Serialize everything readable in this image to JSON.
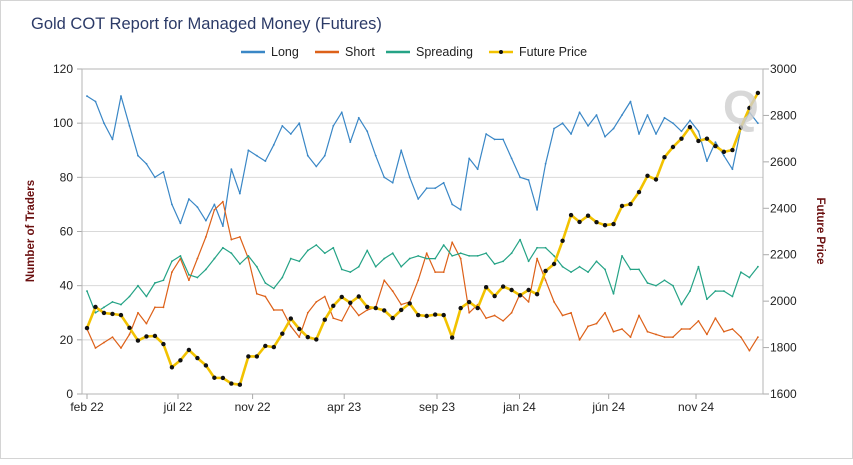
{
  "chart_data": {
    "type": "line",
    "title": "Gold COT Report for Managed Money (Futures)",
    "ylabel_left": "Number of Traders",
    "ylabel_right": "Future Price",
    "ylim_left": [
      0,
      120
    ],
    "ylim_right": [
      1600,
      3000
    ],
    "yticks_left": [
      "0",
      "20",
      "40",
      "60",
      "80",
      "100",
      "120"
    ],
    "yticks_right": [
      "1600",
      "1800",
      "2000",
      "2200",
      "2400",
      "2600",
      "2800",
      "3000"
    ],
    "x_ticks": [
      {
        "label": "feb 22",
        "date": "2022-02-01"
      },
      {
        "label": "júl 22",
        "date": "2022-07-01"
      },
      {
        "label": "nov 22",
        "date": "2022-11-01"
      },
      {
        "label": "apr 23",
        "date": "2023-04-01"
      },
      {
        "label": "sep 23",
        "date": "2023-09-01"
      },
      {
        "label": "jan 24",
        "date": "2024-01-15"
      },
      {
        "label": "jún 24",
        "date": "2024-06-10"
      },
      {
        "label": "nov 24",
        "date": "2024-11-01"
      }
    ],
    "grid": true,
    "legend_position": "top-center",
    "dates": [
      "2022-02-01",
      "2022-02-15",
      "2022-03-01",
      "2022-03-15",
      "2022-03-29",
      "2022-04-12",
      "2022-04-26",
      "2022-05-10",
      "2022-05-24",
      "2022-06-07",
      "2022-06-21",
      "2022-07-05",
      "2022-07-19",
      "2022-08-02",
      "2022-08-16",
      "2022-08-30",
      "2022-09-13",
      "2022-09-27",
      "2022-10-11",
      "2022-10-25",
      "2022-11-08",
      "2022-11-22",
      "2022-12-06",
      "2022-12-20",
      "2023-01-03",
      "2023-01-17",
      "2023-01-31",
      "2023-02-14",
      "2023-02-28",
      "2023-03-14",
      "2023-03-28",
      "2023-04-11",
      "2023-04-25",
      "2023-05-09",
      "2023-05-23",
      "2023-06-06",
      "2023-06-20",
      "2023-07-04",
      "2023-07-18",
      "2023-08-01",
      "2023-08-15",
      "2023-08-29",
      "2023-09-12",
      "2023-09-26",
      "2023-10-10",
      "2023-10-24",
      "2023-11-07",
      "2023-11-21",
      "2023-12-05",
      "2023-12-19",
      "2024-01-02",
      "2024-01-16",
      "2024-01-30",
      "2024-02-13",
      "2024-02-27",
      "2024-03-12",
      "2024-03-26",
      "2024-04-09",
      "2024-04-23",
      "2024-05-07",
      "2024-05-21",
      "2024-06-04",
      "2024-06-18",
      "2024-07-02",
      "2024-07-16",
      "2024-07-30",
      "2024-08-13",
      "2024-08-27",
      "2024-09-10",
      "2024-09-24",
      "2024-10-08",
      "2024-10-22",
      "2024-11-05",
      "2024-11-19",
      "2024-12-03",
      "2024-12-17",
      "2024-12-31",
      "2025-01-14",
      "2025-01-28",
      "2025-02-11"
    ],
    "series": [
      {
        "name": "Long",
        "axis": "left",
        "color": "#3a87c6",
        "values": [
          110,
          108,
          100,
          94,
          110,
          99,
          88,
          85,
          80,
          82,
          70,
          63,
          72,
          69,
          64,
          70,
          62,
          83,
          74,
          90,
          88,
          86,
          92,
          99,
          96,
          100,
          88,
          84,
          88,
          99,
          104,
          93,
          102,
          97,
          88,
          80,
          78,
          90,
          80,
          72,
          76,
          76,
          78,
          70,
          68,
          87,
          83,
          96,
          94,
          94,
          87,
          80,
          79,
          68,
          85,
          98,
          100,
          96,
          104,
          99,
          103,
          95,
          98,
          103,
          108,
          96,
          103,
          96,
          102,
          100,
          97,
          101,
          97,
          86,
          93,
          88,
          83,
          98,
          104,
          100
        ]
      },
      {
        "name": "Short",
        "axis": "left",
        "color": "#dd6119",
        "values": [
          24,
          17,
          19,
          21,
          17,
          22,
          30,
          26,
          32,
          32,
          45,
          50,
          42,
          50,
          58,
          68,
          71,
          57,
          58,
          50,
          37,
          36,
          31,
          31,
          25,
          21,
          30,
          34,
          36,
          28,
          27,
          33,
          29,
          31,
          32,
          42,
          38,
          33,
          34,
          42,
          52,
          45,
          45,
          56,
          50,
          30,
          33,
          28,
          29,
          27,
          30,
          37,
          34,
          50,
          42,
          34,
          29,
          30,
          20,
          25,
          26,
          30,
          23,
          24,
          21,
          29,
          23,
          22,
          21,
          21,
          24,
          24,
          27,
          22,
          28,
          23,
          24,
          21,
          16,
          21
        ]
      },
      {
        "name": "Spreading",
        "axis": "left",
        "color": "#25a386",
        "values": [
          38,
          30,
          32,
          34,
          33,
          36,
          40,
          36,
          41,
          42,
          49,
          51,
          44,
          43,
          46,
          50,
          54,
          52,
          48,
          51,
          47,
          41,
          39,
          43,
          50,
          49,
          53,
          55,
          52,
          54,
          46,
          45,
          47,
          53,
          47,
          50,
          52,
          47,
          50,
          51,
          50,
          50,
          55,
          51,
          52,
          51,
          51,
          52,
          48,
          49,
          52,
          57,
          49,
          54,
          54,
          51,
          47,
          45,
          47,
          45,
          49,
          46,
          37,
          51,
          46,
          46,
          41,
          40,
          42,
          40,
          33,
          38,
          47,
          35,
          38,
          38,
          36,
          45,
          43,
          47
        ]
      },
      {
        "name": "Future Price",
        "axis": "right",
        "color": "#f2c200",
        "marker_color": "#111111",
        "values": [
          1884,
          1975,
          1949,
          1945,
          1940,
          1885,
          1830,
          1848,
          1850,
          1815,
          1715,
          1745,
          1790,
          1755,
          1723,
          1670,
          1669,
          1645,
          1640,
          1762,
          1762,
          1807,
          1802,
          1860,
          1925,
          1880,
          1845,
          1835,
          1920,
          1980,
          2018,
          1993,
          2020,
          1975,
          1970,
          1960,
          1927,
          1962,
          1990,
          1940,
          1936,
          1942,
          1940,
          1843,
          1970,
          1996,
          1970,
          2060,
          2022,
          2063,
          2048,
          2025,
          2048,
          2030,
          2130,
          2160,
          2260,
          2371,
          2341,
          2368,
          2340,
          2327,
          2332,
          2410,
          2418,
          2470,
          2540,
          2524,
          2620,
          2664,
          2700,
          2750,
          2690,
          2700,
          2668,
          2643,
          2651,
          2748,
          2832,
          2897
        ]
      }
    ],
    "gridline_color": "#d9d9d9",
    "axis_title_color": "#6b1010",
    "title_color": "#2b3a67"
  }
}
